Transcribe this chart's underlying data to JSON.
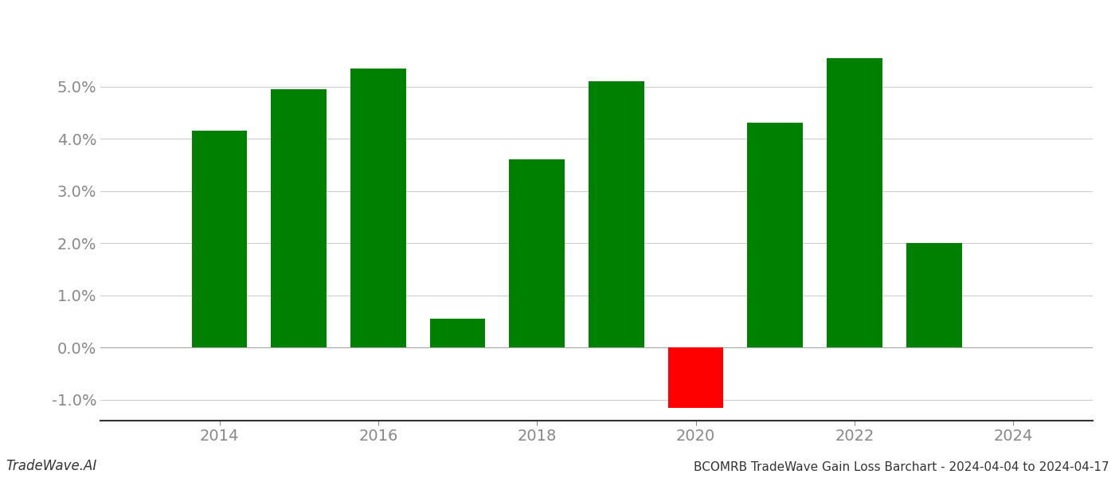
{
  "years": [
    2014,
    2015,
    2016,
    2017,
    2018,
    2019,
    2020,
    2021,
    2022,
    2023
  ],
  "values": [
    0.0415,
    0.0495,
    0.0535,
    0.0055,
    0.036,
    0.051,
    -0.0115,
    0.043,
    0.0555,
    0.02
  ],
  "colors": [
    "#008000",
    "#008000",
    "#008000",
    "#008000",
    "#008000",
    "#008000",
    "#ff0000",
    "#008000",
    "#008000",
    "#008000"
  ],
  "title": "BCOMRB TradeWave Gain Loss Barchart - 2024-04-04 to 2024-04-17",
  "watermark": "TradeWave.AI",
  "ylim_min": -0.014,
  "ylim_max": 0.062,
  "yticks": [
    -0.01,
    0.0,
    0.01,
    0.02,
    0.03,
    0.04,
    0.05
  ],
  "background_color": "#ffffff",
  "grid_color": "#cccccc",
  "bar_width": 0.7,
  "xlim_min": 2012.5,
  "xlim_max": 2025.0
}
